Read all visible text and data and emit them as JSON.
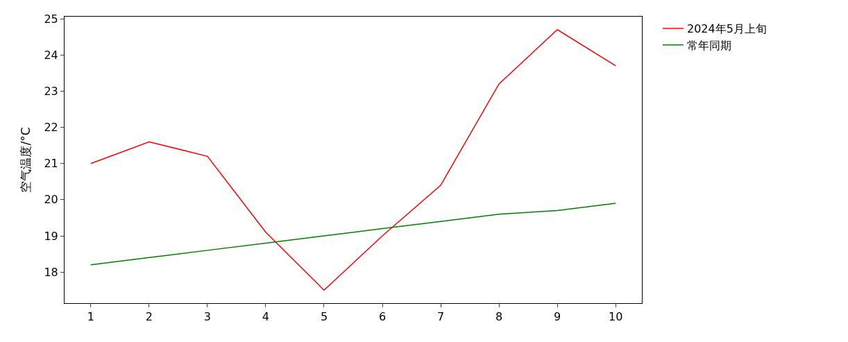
{
  "chart_data": {
    "type": "line",
    "ylabel": "空气温度/°C",
    "x": [
      1,
      2,
      3,
      4,
      5,
      6,
      7,
      8,
      9,
      10
    ],
    "series": [
      {
        "name": "2024年5月上旬",
        "color": "#ff0000",
        "values": [
          21.0,
          21.6,
          21.2,
          19.1,
          17.5,
          19.0,
          20.4,
          23.2,
          24.7,
          23.7
        ]
      },
      {
        "name": "常年同期",
        "color": "#008000",
        "values": [
          18.2,
          18.4,
          18.6,
          18.8,
          19.0,
          19.2,
          19.4,
          19.6,
          19.7,
          19.9
        ]
      }
    ],
    "xlim": [
      0.55,
      10.45
    ],
    "xticks": [
      1,
      2,
      3,
      4,
      5,
      6,
      7,
      8,
      9,
      10
    ],
    "ylim": [
      17.14,
      25.06
    ],
    "yticks": [
      18,
      19,
      20,
      21,
      22,
      23,
      24,
      25
    ],
    "legend": "top right",
    "marker": "none",
    "line_style": "solid"
  }
}
